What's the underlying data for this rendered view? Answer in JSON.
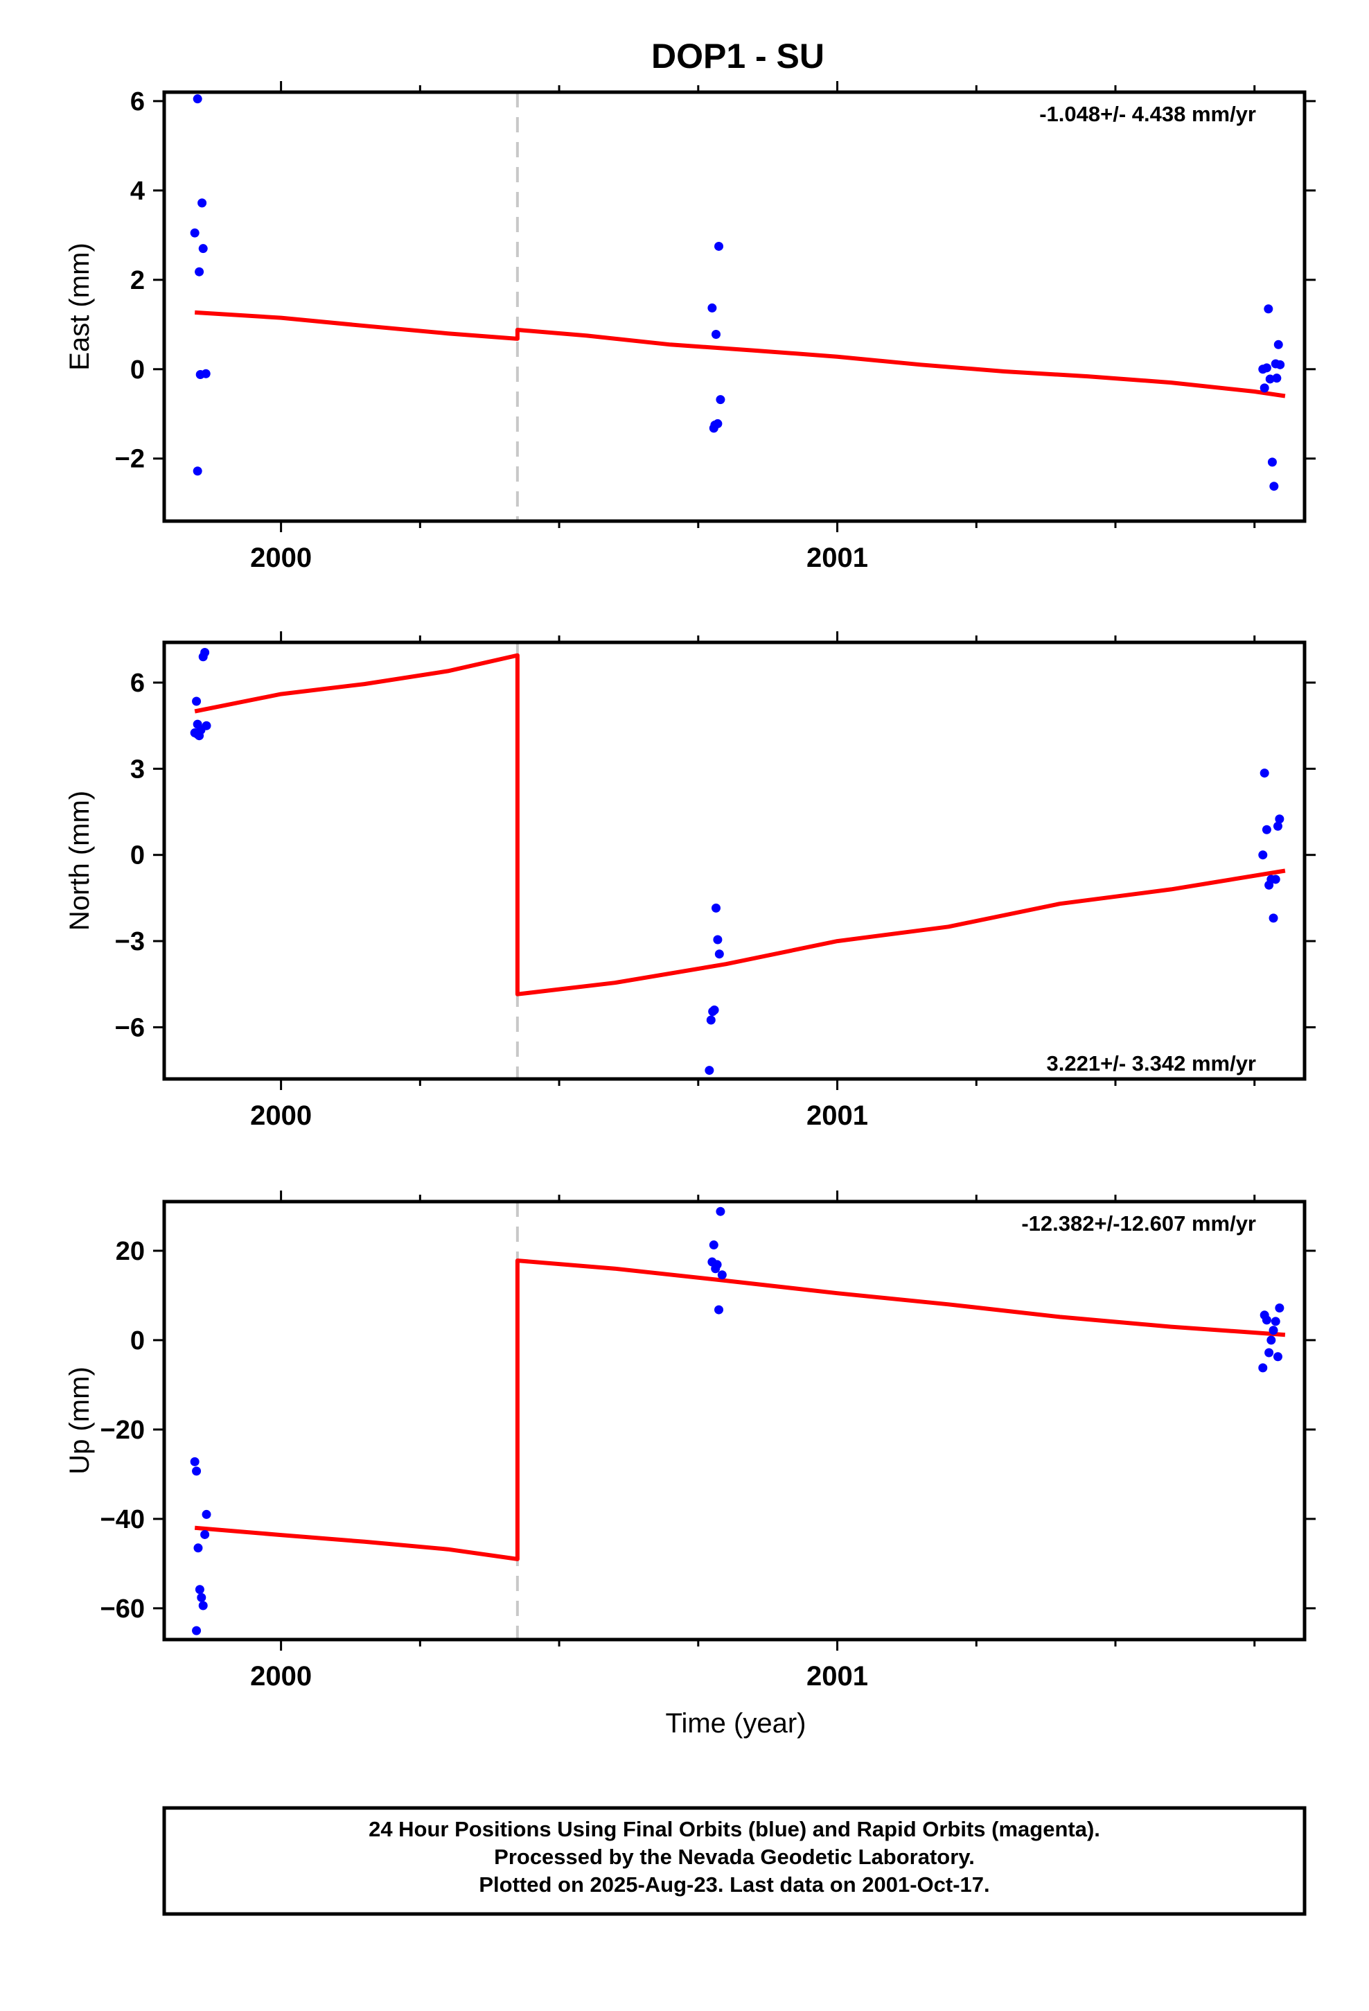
{
  "title": "DOP1 - SU",
  "xlabel": "Time (year)",
  "footer": {
    "line1": "24 Hour Positions Using Final Orbits (blue) and Rapid Orbits (magenta).",
    "line2": "Processed by the Nevada Geodetic Laboratory.",
    "line3": "Plotted on 2025-Aug-23. Last data on 2001-Oct-17."
  },
  "colors": {
    "points": "#0000ff",
    "model": "#ff0000",
    "offset_line": "#c8c8c8"
  },
  "chart_data": [
    {
      "type": "scatter",
      "ylabel": "East (mm)",
      "rate": "-1.048+/- 4.438 mm/yr",
      "rate_position": "top-right",
      "xlim": [
        1999.79,
        2001.84
      ],
      "ylim": [
        -3.4,
        6.2
      ],
      "x_ticks": [
        2000,
        2001
      ],
      "x_tick_labels": [
        "2000",
        "2001"
      ],
      "y_ticks": [
        -2,
        0,
        2,
        4,
        6
      ],
      "y_tick_labels": [
        "−2",
        "0",
        "2",
        "4",
        "6"
      ],
      "offset_x": 2000.425,
      "points": {
        "x": [
          1999.845,
          1999.85,
          1999.853,
          1999.855,
          1999.858,
          1999.86,
          1999.85,
          1999.865,
          2000.775,
          2000.778,
          2000.78,
          2000.782,
          2000.785,
          2000.787,
          2000.79,
          2001.765,
          2001.768,
          2001.772,
          2001.775,
          2001.778,
          2001.782,
          2001.785,
          2001.788,
          2001.79,
          2001.793,
          2001.796
        ],
        "y": [
          3.05,
          6.05,
          2.18,
          -0.12,
          3.72,
          2.7,
          -2.28,
          -0.1,
          1.37,
          -1.32,
          -1.25,
          0.78,
          -1.22,
          2.75,
          -0.68,
          0.0,
          -0.42,
          0.03,
          1.35,
          -0.22,
          -2.08,
          -2.62,
          0.12,
          -0.2,
          0.55,
          0.1
        ]
      },
      "model": {
        "x": [
          1999.845,
          2000.0,
          2000.15,
          2000.3,
          2000.425,
          2000.425,
          2000.55,
          2000.7,
          2000.85,
          2001.0,
          2001.15,
          2001.3,
          2001.45,
          2001.6,
          2001.75,
          2001.805
        ],
        "y": [
          1.27,
          1.15,
          0.97,
          0.8,
          0.68,
          0.88,
          0.75,
          0.55,
          0.42,
          0.28,
          0.1,
          -0.05,
          -0.16,
          -0.3,
          -0.5,
          -0.6
        ]
      }
    },
    {
      "type": "scatter",
      "ylabel": "North (mm)",
      "rate": "3.221+/- 3.342 mm/yr",
      "rate_position": "bottom-right",
      "xlim": [
        1999.79,
        2001.84
      ],
      "ylim": [
        -7.8,
        7.4
      ],
      "x_ticks": [
        2000,
        2001
      ],
      "x_tick_labels": [
        "2000",
        "2001"
      ],
      "y_ticks": [
        -6,
        -3,
        0,
        3,
        6
      ],
      "y_tick_labels": [
        "−6",
        "−3",
        "0",
        "3",
        "6"
      ],
      "offset_x": 2000.425,
      "points": {
        "x": [
          1999.845,
          1999.848,
          1999.85,
          1999.853,
          1999.856,
          1999.86,
          1999.863,
          1999.866,
          1999.85,
          2000.77,
          2000.773,
          2000.776,
          2000.779,
          2000.782,
          2000.785,
          2000.788,
          2001.765,
          2001.768,
          2001.772,
          2001.776,
          2001.78,
          2001.784,
          2001.788,
          2001.792,
          2001.795
        ],
        "y": [
          4.25,
          5.35,
          4.55,
          4.15,
          4.35,
          6.9,
          7.05,
          4.5,
          4.2,
          -7.5,
          -5.75,
          -5.45,
          -5.4,
          -1.85,
          -2.95,
          -3.45,
          0.0,
          2.85,
          0.88,
          -1.05,
          -0.85,
          -2.2,
          -0.85,
          1.0,
          1.25
        ]
      },
      "model": {
        "x": [
          1999.845,
          2000.0,
          2000.15,
          2000.3,
          2000.425,
          2000.425,
          2000.6,
          2000.8,
          2001.0,
          2001.2,
          2001.4,
          2001.6,
          2001.805
        ],
        "y": [
          5.0,
          5.6,
          5.95,
          6.4,
          6.95,
          -4.85,
          -4.45,
          -3.8,
          -3.0,
          -2.5,
          -1.7,
          -1.2,
          -0.55
        ]
      }
    },
    {
      "type": "scatter",
      "ylabel": "Up (mm)",
      "rate": "-12.382+/-12.607 mm/yr",
      "rate_position": "top-right",
      "xlim": [
        1999.79,
        2001.84
      ],
      "ylim": [
        -67.0,
        31.0
      ],
      "x_ticks": [
        2000,
        2001
      ],
      "x_tick_labels": [
        "2000",
        "2001"
      ],
      "y_ticks": [
        -60,
        -40,
        -20,
        0,
        20
      ],
      "y_tick_labels": [
        "−60",
        "−40",
        "−20",
        "0",
        "20"
      ],
      "offset_x": 2000.425,
      "points": {
        "x": [
          1999.845,
          1999.848,
          1999.851,
          1999.854,
          1999.857,
          1999.86,
          1999.863,
          1999.866,
          1999.848,
          2000.775,
          2000.778,
          2000.781,
          2000.784,
          2000.787,
          2000.79,
          2000.793,
          2001.765,
          2001.768,
          2001.772,
          2001.776,
          2001.78,
          2001.784,
          2001.788,
          2001.792,
          2001.795
        ],
        "y": [
          -27.2,
          -29.3,
          -46.5,
          -55.8,
          -57.6,
          -59.4,
          -43.5,
          -39.0,
          -65.0,
          17.5,
          21.3,
          16.0,
          16.9,
          6.8,
          28.8,
          14.6,
          -6.2,
          5.6,
          4.5,
          -2.8,
          0.0,
          2.2,
          4.2,
          -3.7,
          7.2
        ]
      },
      "model": {
        "x": [
          1999.845,
          2000.0,
          2000.15,
          2000.3,
          2000.425,
          2000.425,
          2000.6,
          2000.8,
          2001.0,
          2001.2,
          2001.4,
          2001.6,
          2001.805
        ],
        "y": [
          -42.0,
          -43.6,
          -45.1,
          -46.8,
          -49.0,
          17.8,
          16.0,
          13.3,
          10.5,
          8.0,
          5.2,
          3.0,
          1.2
        ]
      }
    }
  ]
}
